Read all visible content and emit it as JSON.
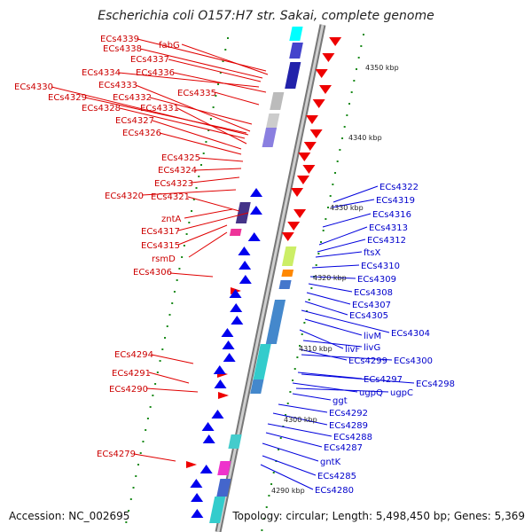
{
  "title": "Escherichia coli O157:H7 str. Sakai, complete genome",
  "footer": {
    "accession": "Accession: NC_002695",
    "topology": "Topology: circular; Length: 5,498,450 bp; Genes: 5,369"
  },
  "colors": {
    "reverse_strand": "#ee0000",
    "forward_strand": "#0000ee",
    "backbone": "#888888",
    "tick": "#1a8a1a"
  },
  "kbp_ticks": [
    "4350 kbp",
    "4340 kbp",
    "4330 kbp",
    "4320 kbp",
    "4310 kbp",
    "4300 kbp",
    "4290 kbp"
  ],
  "left_labels": [
    "ECs4339",
    "fabG",
    "ECs4338",
    "ECs4337",
    "ECs4334",
    "ECs4336",
    "ECs4330",
    "ECs4333",
    "ECs4335",
    "ECs4329",
    "ECs4332",
    "ECs4328",
    "ECs4331",
    "ECs4327",
    "ECs4326",
    "ECs4325",
    "ECs4324",
    "ECs4323",
    "ECs4320",
    "ECs4321",
    "zntA",
    "ECs4317",
    "ECs4315",
    "rsmD",
    "ECs4306",
    "ECs4294",
    "ECs4291",
    "ECs4290",
    "ECs4279"
  ],
  "right_labels": [
    "ECs4322",
    "ECs4319",
    "ECs4316",
    "ECs4313",
    "ECs4312",
    "ftsX",
    "ECs4310",
    "ECs4309",
    "ECs4308",
    "ECs4307",
    "ECs4305",
    "ECs4304",
    "livM",
    "livF",
    "livG",
    "ECs4299",
    "ECs4300",
    "ECs4297",
    "ECs4298",
    "ugpQ",
    "ugpC",
    "ggt",
    "ECs4292",
    "ECs4289",
    "ECs4288",
    "ECs4287",
    "gntK",
    "ECs4285",
    "ECs4280"
  ]
}
